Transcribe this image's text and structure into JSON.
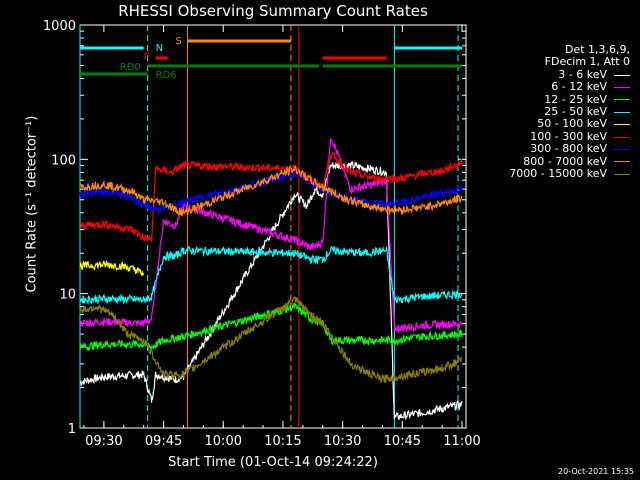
{
  "chart_data": {
    "type": "line",
    "title": "RHESSI Observing Summary Count Rates",
    "xlabel": "Start Time (01-Oct-14 09:24:22)",
    "ylabel": "Count Rate (s⁻¹ detector⁻¹)",
    "xlim": [
      "09:24",
      "11:01"
    ],
    "ylim": [
      1,
      1000
    ],
    "yscale": "log",
    "grid": false,
    "legend_position": "top-right",
    "x_ticks": [
      "09:30",
      "09:45",
      "10:00",
      "10:15",
      "10:30",
      "10:45",
      "11:00"
    ],
    "y_ticks": [
      "1",
      "10",
      "100",
      "1000"
    ],
    "legend_header": [
      "Det 1,3,6,9,",
      "FDecim 1, Att 0"
    ],
    "series": [
      {
        "name": "3 - 6 keV",
        "color": "#ffffff",
        "values": [
          [
            "09:24",
            2.2
          ],
          [
            "09:30",
            2.4
          ],
          [
            "09:40",
            2.5
          ],
          [
            "09:42",
            1.6
          ],
          [
            "09:43",
            2.5
          ],
          [
            "09:48",
            2.3
          ],
          [
            "09:50",
            2.4
          ],
          [
            "10:18",
            55
          ],
          [
            "10:21",
            45
          ],
          [
            "10:23",
            60
          ],
          [
            "10:25",
            55
          ],
          [
            "10:27",
            90
          ],
          [
            "10:32",
            90
          ],
          [
            "10:37",
            85
          ],
          [
            "10:41",
            80
          ],
          [
            "10:43",
            1.2
          ],
          [
            "10:50",
            1.3
          ],
          [
            "11:00",
            1.5
          ]
        ]
      },
      {
        "name": "6 - 12 keV",
        "color": "#ff00ff",
        "values": [
          [
            "09:24",
            6
          ],
          [
            "09:30",
            6.2
          ],
          [
            "09:40",
            6
          ],
          [
            "09:42",
            6.5
          ],
          [
            "09:45",
            35
          ],
          [
            "09:48",
            32
          ],
          [
            "09:50",
            45
          ],
          [
            "10:18",
            25
          ],
          [
            "10:22",
            22
          ],
          [
            "10:25",
            24
          ],
          [
            "10:27",
            150
          ],
          [
            "10:32",
            60
          ],
          [
            "10:38",
            65
          ],
          [
            "10:41",
            70
          ],
          [
            "10:43",
            5.5
          ],
          [
            "10:50",
            5.8
          ],
          [
            "11:00",
            6
          ]
        ]
      },
      {
        "name": "12 - 25 keV",
        "color": "#00ff00",
        "values": [
          [
            "09:24",
            4
          ],
          [
            "09:30",
            4.2
          ],
          [
            "09:40",
            4.2
          ],
          [
            "09:42",
            4
          ],
          [
            "09:45",
            4.5
          ],
          [
            "09:50",
            4.8
          ],
          [
            "10:18",
            8
          ],
          [
            "10:22",
            6.5
          ],
          [
            "10:25",
            6
          ],
          [
            "10:27",
            4.5
          ],
          [
            "10:35",
            4.5
          ],
          [
            "10:43",
            4.5
          ],
          [
            "10:50",
            4.8
          ],
          [
            "11:00",
            5
          ]
        ]
      },
      {
        "name": "25 - 50 keV",
        "color": "#00ffff",
        "values": [
          [
            "09:24",
            9
          ],
          [
            "09:30",
            9.2
          ],
          [
            "09:40",
            9
          ],
          [
            "09:42",
            9.5
          ],
          [
            "09:45",
            19
          ],
          [
            "09:48",
            19
          ],
          [
            "09:50",
            21
          ],
          [
            "10:18",
            20
          ],
          [
            "10:22",
            18
          ],
          [
            "10:25",
            18
          ],
          [
            "10:27",
            21
          ],
          [
            "10:35",
            20
          ],
          [
            "10:41",
            21
          ],
          [
            "10:43",
            9
          ],
          [
            "10:50",
            9.5
          ],
          [
            "11:00",
            10
          ]
        ]
      },
      {
        "name": "50 - 100 keV",
        "color": "#ffff00",
        "values": [
          [
            "09:24",
            16
          ],
          [
            "09:30",
            16.5
          ],
          [
            "09:35",
            16
          ],
          [
            "09:38",
            15
          ],
          [
            "09:40",
            14
          ]
        ]
      },
      {
        "name": "100 - 300 keV",
        "color": "#ff0000",
        "values": [
          [
            "09:24",
            32
          ],
          [
            "09:30",
            33
          ],
          [
            "09:37",
            30
          ],
          [
            "09:40",
            26
          ],
          [
            "09:42",
            25
          ],
          [
            "09:43",
            85
          ],
          [
            "09:47",
            80
          ],
          [
            "09:50",
            90
          ],
          [
            "10:18",
            85
          ],
          [
            "10:22",
            70
          ],
          [
            "10:25",
            62
          ],
          [
            "10:27",
            110
          ],
          [
            "10:32",
            80
          ],
          [
            "10:38",
            72
          ],
          [
            "10:45",
            72
          ],
          [
            "10:50",
            78
          ],
          [
            "10:55",
            82
          ],
          [
            "11:00",
            95
          ]
        ]
      },
      {
        "name": "300 - 800 keV",
        "color": "#0000ff",
        "values": [
          [
            "09:24",
            55
          ],
          [
            "09:30",
            58
          ],
          [
            "09:37",
            52
          ],
          [
            "09:40",
            45
          ],
          [
            "09:45",
            42
          ],
          [
            "09:48",
            45
          ],
          [
            "09:50",
            48
          ],
          [
            "10:18",
            78
          ],
          [
            "10:22",
            68
          ],
          [
            "10:25",
            60
          ],
          [
            "10:30",
            52
          ],
          [
            "10:35",
            48
          ],
          [
            "10:41",
            46
          ],
          [
            "10:45",
            48
          ],
          [
            "10:50",
            52
          ],
          [
            "10:55",
            56
          ],
          [
            "11:00",
            60
          ]
        ]
      },
      {
        "name": "800 - 7000 keV",
        "color": "#ff8800",
        "values": [
          [
            "09:24",
            62
          ],
          [
            "09:30",
            65
          ],
          [
            "09:37",
            58
          ],
          [
            "09:40",
            50
          ],
          [
            "09:45",
            48
          ],
          [
            "09:48",
            42
          ],
          [
            "09:50",
            40
          ],
          [
            "10:18",
            85
          ],
          [
            "10:22",
            70
          ],
          [
            "10:25",
            62
          ],
          [
            "10:30",
            52
          ],
          [
            "10:35",
            46
          ],
          [
            "10:40",
            43
          ],
          [
            "10:45",
            42
          ],
          [
            "10:50",
            44
          ],
          [
            "10:55",
            47
          ],
          [
            "11:00",
            52
          ]
        ]
      },
      {
        "name": "7000 - 15000 keV",
        "color": "#8b7d00",
        "values": [
          [
            "09:24",
            7.5
          ],
          [
            "09:28",
            8
          ],
          [
            "09:32",
            7
          ],
          [
            "09:36",
            5
          ],
          [
            "09:40",
            4.5
          ],
          [
            "09:43",
            3.2
          ],
          [
            "09:45",
            2.5
          ],
          [
            "09:50",
            2.5
          ],
          [
            "10:18",
            9
          ],
          [
            "10:22",
            7
          ],
          [
            "10:25",
            6
          ],
          [
            "10:28",
            4.5
          ],
          [
            "10:32",
            3
          ],
          [
            "10:36",
            2.6
          ],
          [
            "10:40",
            2.3
          ],
          [
            "10:43",
            2.4
          ],
          [
            "10:50",
            2.6
          ],
          [
            "10:55",
            2.8
          ],
          [
            "11:00",
            3.2
          ]
        ]
      }
    ],
    "state_bars": [
      {
        "label": "N",
        "color": "#00ffff",
        "segments": [
          [
            "09:24",
            "09:40"
          ],
          [
            "10:43",
            "11:00"
          ]
        ]
      },
      {
        "label": "S",
        "color": "#ff8800",
        "segments": [
          [
            "09:51",
            "10:17"
          ]
        ]
      },
      {
        "label": "F",
        "color": "#ff0000",
        "segments": [
          [
            "09:43",
            "09:46"
          ],
          [
            "10:25",
            "10:41"
          ]
        ]
      },
      {
        "label": "RD0",
        "color": "#008000",
        "segments": [
          [
            "09:24",
            "09:41"
          ]
        ]
      },
      {
        "label": "RD6",
        "color": "#008000",
        "segments": [
          [
            "09:41",
            "10:17"
          ],
          [
            "10:17",
            "10:24"
          ],
          [
            "10:25",
            "11:00"
          ]
        ]
      }
    ],
    "vlines": [
      {
        "time": "09:24",
        "color": "#00ffff",
        "style": "solid"
      },
      {
        "time": "09:41",
        "color": "#00ffff",
        "style": "dashed"
      },
      {
        "time": "09:51",
        "color": "#ff8800",
        "style": "solid"
      },
      {
        "time": "10:17",
        "color": "#ff8800",
        "style": "dashed"
      },
      {
        "time": "10:19",
        "color": "#ff0000",
        "style": "solid"
      },
      {
        "time": "10:43",
        "color": "#00ffff",
        "style": "solid"
      },
      {
        "time": "10:59",
        "color": "#00ffff",
        "style": "dashed"
      }
    ]
  },
  "timestamp": "20-Oct-2021 15:35"
}
